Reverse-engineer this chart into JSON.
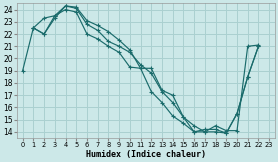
{
  "xlabel": "Humidex (Indice chaleur)",
  "bg_color": "#cce8e8",
  "grid_color": "#aad0d0",
  "line_color": "#1a6b6b",
  "xlim": [
    -0.5,
    23.5
  ],
  "ylim": [
    13.5,
    24.5
  ],
  "yticks": [
    14,
    15,
    16,
    17,
    18,
    19,
    20,
    21,
    22,
    23,
    24
  ],
  "xticks": [
    0,
    1,
    2,
    3,
    4,
    5,
    6,
    7,
    8,
    9,
    10,
    11,
    12,
    13,
    14,
    15,
    16,
    17,
    18,
    19,
    20,
    21,
    22,
    23
  ],
  "line1_x": [
    0,
    1,
    2,
    3,
    4,
    5,
    6,
    7,
    8,
    9,
    10,
    11,
    12,
    13,
    14,
    15,
    16,
    17,
    18,
    19,
    20,
    21,
    22
  ],
  "line1_y": [
    19,
    22.5,
    23.3,
    23.5,
    24.3,
    24.2,
    23.1,
    22.7,
    22.2,
    21.5,
    20.7,
    19.2,
    19.2,
    17.4,
    17.0,
    15.2,
    14.0,
    14.0,
    14.5,
    14.1,
    14.1,
    21.0,
    21.1
  ],
  "line2_x": [
    1,
    2,
    3,
    4,
    5,
    6,
    7,
    8,
    9,
    10,
    11,
    12,
    13,
    14,
    15,
    16,
    17,
    18,
    19,
    20,
    21,
    22
  ],
  "line2_y": [
    22.5,
    22.0,
    23.3,
    24.3,
    24.1,
    22.8,
    22.3,
    21.4,
    21.0,
    20.5,
    19.5,
    18.8,
    17.3,
    16.4,
    15.2,
    14.5,
    14.0,
    14.0,
    13.9,
    15.5,
    18.5,
    21.0
  ],
  "line3_x": [
    1,
    2,
    3,
    4,
    5,
    6,
    7,
    8,
    9,
    10,
    11,
    12,
    13,
    14,
    15,
    16,
    17,
    18,
    19,
    20,
    21,
    22
  ],
  "line3_y": [
    22.5,
    22.0,
    23.5,
    24.0,
    23.8,
    22.0,
    21.6,
    21.0,
    20.5,
    19.3,
    19.2,
    17.3,
    16.4,
    15.3,
    14.7,
    14.0,
    14.2,
    14.2,
    13.9,
    15.5,
    18.5,
    21.0
  ]
}
